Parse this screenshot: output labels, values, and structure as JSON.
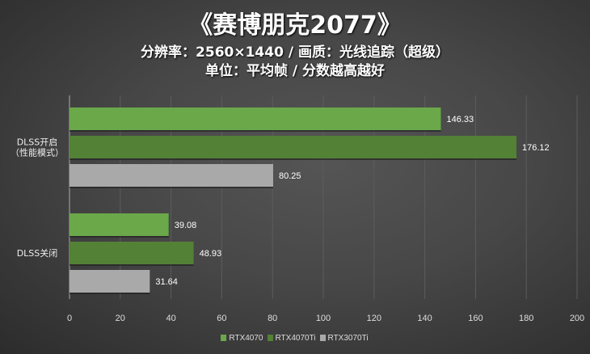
{
  "chart_data": {
    "type": "bar",
    "orientation": "horizontal",
    "title": "《赛博朋克2077》",
    "subtitle": "分辨率：2560×1440 / 画质：光线追踪（超级）",
    "subtitle2": "单位：平均帧 / 分数越高越好",
    "categories": [
      "DLSS开启\n（性能模式）",
      "DLSS关闭"
    ],
    "series": [
      {
        "name": "RTX4070",
        "color": "#6aa84a",
        "values": [
          146.33,
          39.08
        ]
      },
      {
        "name": "RTX4070Ti",
        "color": "#538135",
        "values": [
          176.12,
          48.93
        ]
      },
      {
        "name": "RTX3070Ti",
        "color": "#a9a9a9",
        "values": [
          80.25,
          31.64
        ]
      }
    ],
    "xlim": [
      0,
      200
    ],
    "xticks": [
      "0",
      "20",
      "40",
      "60",
      "80",
      "100",
      "120",
      "140",
      "160",
      "180",
      "200"
    ],
    "grid": true,
    "legend": "bottom"
  }
}
